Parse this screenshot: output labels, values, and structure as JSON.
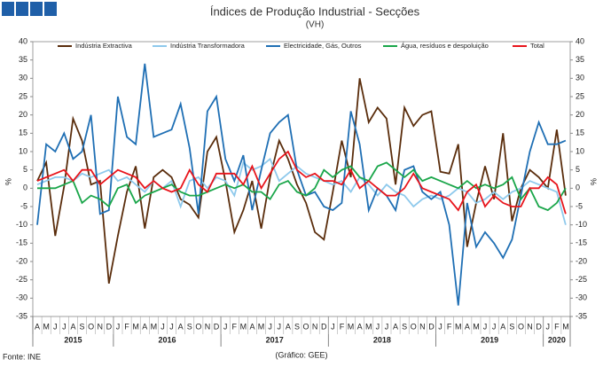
{
  "chart_data": {
    "type": "line",
    "title": "Índices de Produção Industrial - Secções",
    "subtitle": "(VH)",
    "ylabel": "%",
    "y2label": "%",
    "source": "Fonte: INE",
    "credit": "(Gráfico: GEE)",
    "groups": [
      {
        "label": "2015",
        "categories": [
          "A",
          "M",
          "J",
          "J",
          "A",
          "S",
          "O",
          "N",
          "D"
        ]
      },
      {
        "label": "2016",
        "categories": [
          "J",
          "F",
          "M",
          "A",
          "M",
          "J",
          "J",
          "A",
          "S",
          "O",
          "N",
          "D"
        ]
      },
      {
        "label": "2017",
        "categories": [
          "J",
          "F",
          "M",
          "A",
          "M",
          "J",
          "J",
          "A",
          "S",
          "O",
          "N",
          "D"
        ]
      },
      {
        "label": "2018",
        "categories": [
          "J",
          "F",
          "M",
          "A",
          "M",
          "J",
          "J",
          "A",
          "S",
          "O",
          "N",
          "D"
        ]
      },
      {
        "label": "2019",
        "categories": [
          "J",
          "F",
          "M",
          "A",
          "M",
          "J",
          "J",
          "A",
          "S",
          "O",
          "N",
          "D"
        ]
      },
      {
        "label": "2020",
        "categories": [
          "J",
          "F",
          "M"
        ]
      }
    ],
    "ylim": [
      -35,
      40
    ],
    "yticks": [
      -35,
      -30,
      -25,
      -20,
      -15,
      -10,
      -5,
      0,
      5,
      10,
      15,
      20,
      25,
      30,
      35,
      40
    ],
    "y2lim": [
      -35,
      40
    ],
    "y2ticks": [
      -35,
      -30,
      -25,
      -20,
      -15,
      -10,
      -5,
      0,
      5,
      10,
      15,
      20,
      25,
      30,
      35,
      40
    ],
    "series": [
      {
        "name": "Indústria Extractiva",
        "color": "#5a2d0c",
        "values": [
          2,
          7,
          -13,
          0.5,
          19,
          13,
          1,
          2,
          -26,
          -13,
          -1,
          6,
          -11,
          3,
          5,
          3,
          -3,
          -4.5,
          -8,
          10,
          14,
          2,
          -12,
          -6,
          2,
          -11,
          3,
          13,
          8,
          1,
          -4,
          -12,
          -14,
          -1,
          13,
          3,
          30,
          18,
          22,
          19,
          1,
          22,
          17,
          20,
          21,
          4.5,
          4,
          12,
          -16,
          -4,
          6,
          -3,
          15,
          -9,
          0,
          5,
          3,
          0,
          16,
          -2
        ]
      },
      {
        "name": "Indústria Transformadora",
        "color": "#8ec9ec",
        "values": [
          1,
          2,
          3,
          3,
          2,
          4,
          3,
          4,
          5,
          2,
          3,
          1,
          -1,
          2,
          0,
          2,
          -5,
          2,
          3,
          0,
          3,
          2,
          -2,
          7,
          5,
          6,
          8,
          2,
          4,
          6,
          4,
          3,
          2,
          1,
          2,
          -1,
          3,
          1,
          -2,
          1,
          -1,
          -2,
          -5,
          -3,
          -2,
          -3,
          -2,
          0,
          -1,
          -4,
          -3,
          -1,
          -3,
          -1,
          0,
          2,
          1,
          0,
          -1,
          -10
        ]
      },
      {
        "name": "Electricidade, Gás, Outros",
        "color": "#1f6fb4",
        "values": [
          -10,
          12,
          10,
          15,
          8,
          10,
          20,
          -7,
          -6,
          25,
          14,
          12,
          34,
          14,
          15,
          16,
          23,
          11,
          -7,
          21,
          25,
          8,
          2,
          9,
          -6,
          5,
          15,
          18,
          20,
          5,
          -2,
          -1,
          -5,
          -6,
          -4,
          21,
          12,
          -6,
          0,
          -2,
          -6,
          5,
          6,
          -1,
          -3,
          -1,
          -10,
          -32,
          -4,
          -16,
          -12,
          -15,
          -19,
          -14,
          -2,
          10,
          18,
          12,
          12,
          13
        ]
      },
      {
        "name": "Água, resíduos e despoluição",
        "color": "#1aa64a",
        "values": [
          0,
          0,
          0,
          1,
          2,
          -4,
          -2,
          -3,
          -5,
          0,
          1,
          -4,
          -2,
          -1,
          0,
          1,
          -1,
          -2,
          -2,
          -1,
          0,
          1,
          0,
          1,
          -1,
          -1,
          -3,
          1,
          2,
          -1,
          -2,
          0,
          5,
          3,
          5,
          6,
          3,
          2,
          6,
          7,
          5,
          3,
          5,
          2,
          3,
          2,
          1,
          0,
          2,
          0,
          1,
          0,
          1,
          3,
          -3,
          0,
          -5,
          -6,
          -4,
          0
        ]
      },
      {
        "name": "Total",
        "color": "#e8141b",
        "values": [
          2,
          3,
          4,
          5,
          2,
          5,
          5,
          1,
          3,
          5,
          4,
          3,
          0,
          2,
          0,
          -1,
          0,
          5,
          1,
          -1,
          4,
          4,
          4,
          1,
          6,
          0,
          4,
          8,
          10,
          5,
          3,
          4,
          2,
          2,
          1,
          5,
          0,
          2,
          0,
          -2,
          -2,
          0,
          4,
          0,
          -1,
          -2,
          -3,
          -6,
          -1,
          1,
          -5,
          -2,
          -4,
          -5,
          -5,
          0,
          0,
          3,
          1,
          -7
        ]
      }
    ]
  }
}
